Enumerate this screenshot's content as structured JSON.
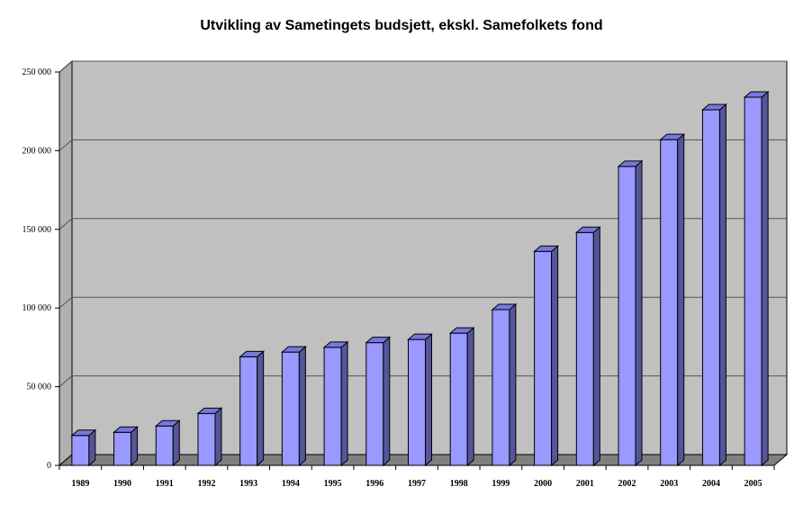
{
  "chart_data": {
    "type": "bar",
    "title": "Utvikling av Sametingets budsjett, ekskl. Samefolkets fond",
    "xlabel": "",
    "ylabel": "",
    "categories": [
      "1989",
      "1990",
      "1991",
      "1992",
      "1993",
      "1994",
      "1995",
      "1996",
      "1997",
      "1998",
      "1999",
      "2000",
      "2001",
      "2002",
      "2003",
      "2004",
      "2005"
    ],
    "values": [
      19000,
      21000,
      25000,
      33000,
      69000,
      72000,
      75000,
      78000,
      80000,
      84000,
      99000,
      136000,
      148000,
      190000,
      207000,
      226000,
      234000
    ],
    "ylim": [
      0,
      250000
    ],
    "yticks": [
      0,
      50000,
      100000,
      150000,
      200000,
      250000
    ],
    "ytick_labels": [
      "0",
      "50 000",
      "100 000",
      "150 000",
      "200 000",
      "250 000"
    ],
    "grid": true,
    "legend": "none",
    "colors": {
      "bar_front": "#9999ff",
      "bar_top": "#7777dd",
      "bar_side": "#55559a",
      "wall": "#c0c0c0",
      "side_wall": "#b0b0b0",
      "floor": "#808080",
      "gridline": "#555555"
    }
  }
}
